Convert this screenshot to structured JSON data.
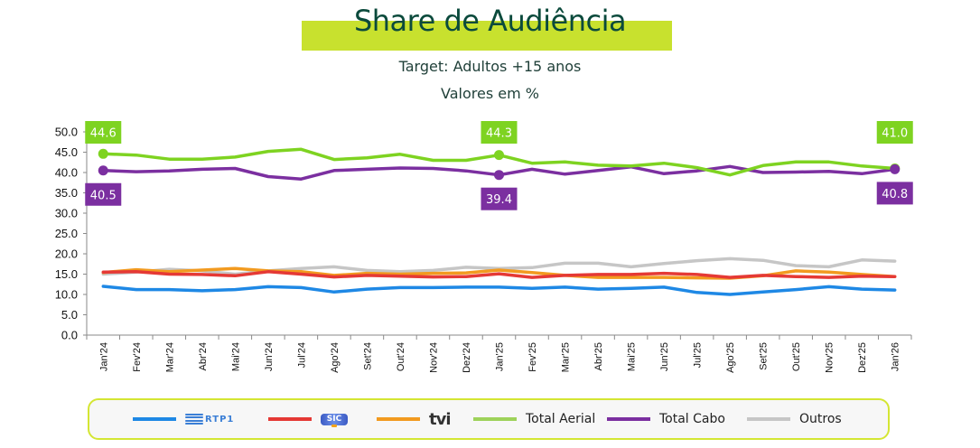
{
  "header": {
    "title": "Share de Audiência",
    "subtitle_target": "Target: Adultos +15 anos",
    "subtitle_units": "Valores em %"
  },
  "colors": {
    "title_bar": "#c8e12e",
    "RTP1": "#1e88e5",
    "SIC": "#e53935",
    "TVI": "#f29a1f",
    "Total Aerial": "#7ed321",
    "Total Cabo": "#7b2fa0",
    "Outros": "#c6c6c6"
  },
  "legend": {
    "items": [
      {
        "key": "RTP1",
        "label": "RTP1",
        "logo": "rtp1-logo"
      },
      {
        "key": "SIC",
        "label": "SIC",
        "logo": "sic-logo"
      },
      {
        "key": "TVI",
        "label": "tvi",
        "logo": "tvi-logo"
      },
      {
        "key": "Total Aerial",
        "label": "Total Aerial"
      },
      {
        "key": "Total Cabo",
        "label": "Total Cabo"
      },
      {
        "key": "Outros",
        "label": "Outros"
      }
    ]
  },
  "chart_data": {
    "type": "line",
    "title": "Share de Audiência",
    "subtitle": "Target: Adultos +15 anos — Valores em %",
    "xlabel": "",
    "ylabel": "",
    "ylim": [
      0,
      50
    ],
    "yticks": [
      "0.0",
      "5.0",
      "10.0",
      "15.0",
      "20.0",
      "25.0",
      "30.0",
      "35.0",
      "40.0",
      "45.0",
      "50.0"
    ],
    "grid": false,
    "legend_position": "bottom",
    "categories": [
      "Jan'24",
      "Fev'24",
      "Mar'24",
      "Abr'24",
      "Mai'24",
      "Jun'24",
      "Jul'24",
      "Ago'24",
      "Set'24",
      "Out'24",
      "Nov'24",
      "Dez'24",
      "Jan'25",
      "Fev'25",
      "Mar'25",
      "Abr'25",
      "Mai'25",
      "Jun'25",
      "Jul'25",
      "Ago'25",
      "Set'25",
      "Out'25",
      "Nov'25",
      "Dez'25",
      "Jan'26"
    ],
    "series": [
      {
        "name": "RTP1",
        "values": [
          12.0,
          11.2,
          11.2,
          10.9,
          11.2,
          11.9,
          11.7,
          10.6,
          11.3,
          11.7,
          11.7,
          11.8,
          11.8,
          11.5,
          11.8,
          11.3,
          11.5,
          11.8,
          10.5,
          10.0,
          10.6,
          11.2,
          11.9,
          11.3,
          11.1
        ]
      },
      {
        "name": "SIC",
        "values": [
          15.5,
          15.6,
          15.0,
          14.9,
          14.6,
          15.6,
          15.0,
          14.3,
          14.7,
          14.5,
          14.3,
          14.4,
          15.1,
          14.2,
          14.7,
          14.9,
          14.9,
          15.2,
          14.9,
          14.2,
          14.7,
          14.4,
          14.2,
          14.5,
          14.4
        ]
      },
      {
        "name": "TVI",
        "values": [
          15.4,
          16.1,
          15.6,
          16.0,
          16.4,
          15.8,
          15.6,
          14.7,
          15.2,
          15.0,
          15.2,
          15.3,
          16.0,
          15.4,
          14.7,
          14.2,
          14.2,
          14.2,
          14.1,
          14.0,
          14.6,
          15.8,
          15.5,
          14.9,
          14.4
        ]
      },
      {
        "name": "Total Aerial",
        "values": [
          44.6,
          44.3,
          43.3,
          43.3,
          43.8,
          45.2,
          45.7,
          43.2,
          43.6,
          44.5,
          43.0,
          43.0,
          44.3,
          42.3,
          42.6,
          41.8,
          41.6,
          42.3,
          41.2,
          39.4,
          41.7,
          42.6,
          42.6,
          41.6,
          41.0
        ]
      },
      {
        "name": "Total Cabo",
        "values": [
          40.5,
          40.2,
          40.4,
          40.8,
          41.0,
          39.0,
          38.4,
          40.5,
          40.8,
          41.1,
          41.0,
          40.4,
          39.4,
          40.8,
          39.6,
          40.5,
          41.4,
          39.7,
          40.4,
          41.5,
          40.0,
          40.1,
          40.3,
          39.7,
          40.8
        ]
      },
      {
        "name": "Outros",
        "values": [
          15.0,
          15.5,
          16.2,
          15.8,
          15.0,
          15.8,
          16.4,
          16.8,
          15.9,
          15.6,
          15.9,
          16.7,
          16.4,
          16.6,
          17.7,
          17.7,
          16.8,
          17.6,
          18.3,
          18.8,
          18.4,
          17.1,
          16.8,
          18.5,
          18.2
        ]
      }
    ],
    "annotations": [
      {
        "series": "Total Aerial",
        "category": "Jan'24",
        "text": "44.6",
        "placement": "above"
      },
      {
        "series": "Total Cabo",
        "category": "Jan'24",
        "text": "40.5",
        "placement": "below"
      },
      {
        "series": "Total Aerial",
        "category": "Jan'25",
        "text": "44.3",
        "placement": "above"
      },
      {
        "series": "Total Cabo",
        "category": "Jan'25",
        "text": "39.4",
        "placement": "below"
      },
      {
        "series": "Total Aerial",
        "category": "Jan'26",
        "text": "41.0",
        "placement": "above"
      },
      {
        "series": "Total Cabo",
        "category": "Jan'26",
        "text": "40.8",
        "placement": "below"
      }
    ]
  }
}
